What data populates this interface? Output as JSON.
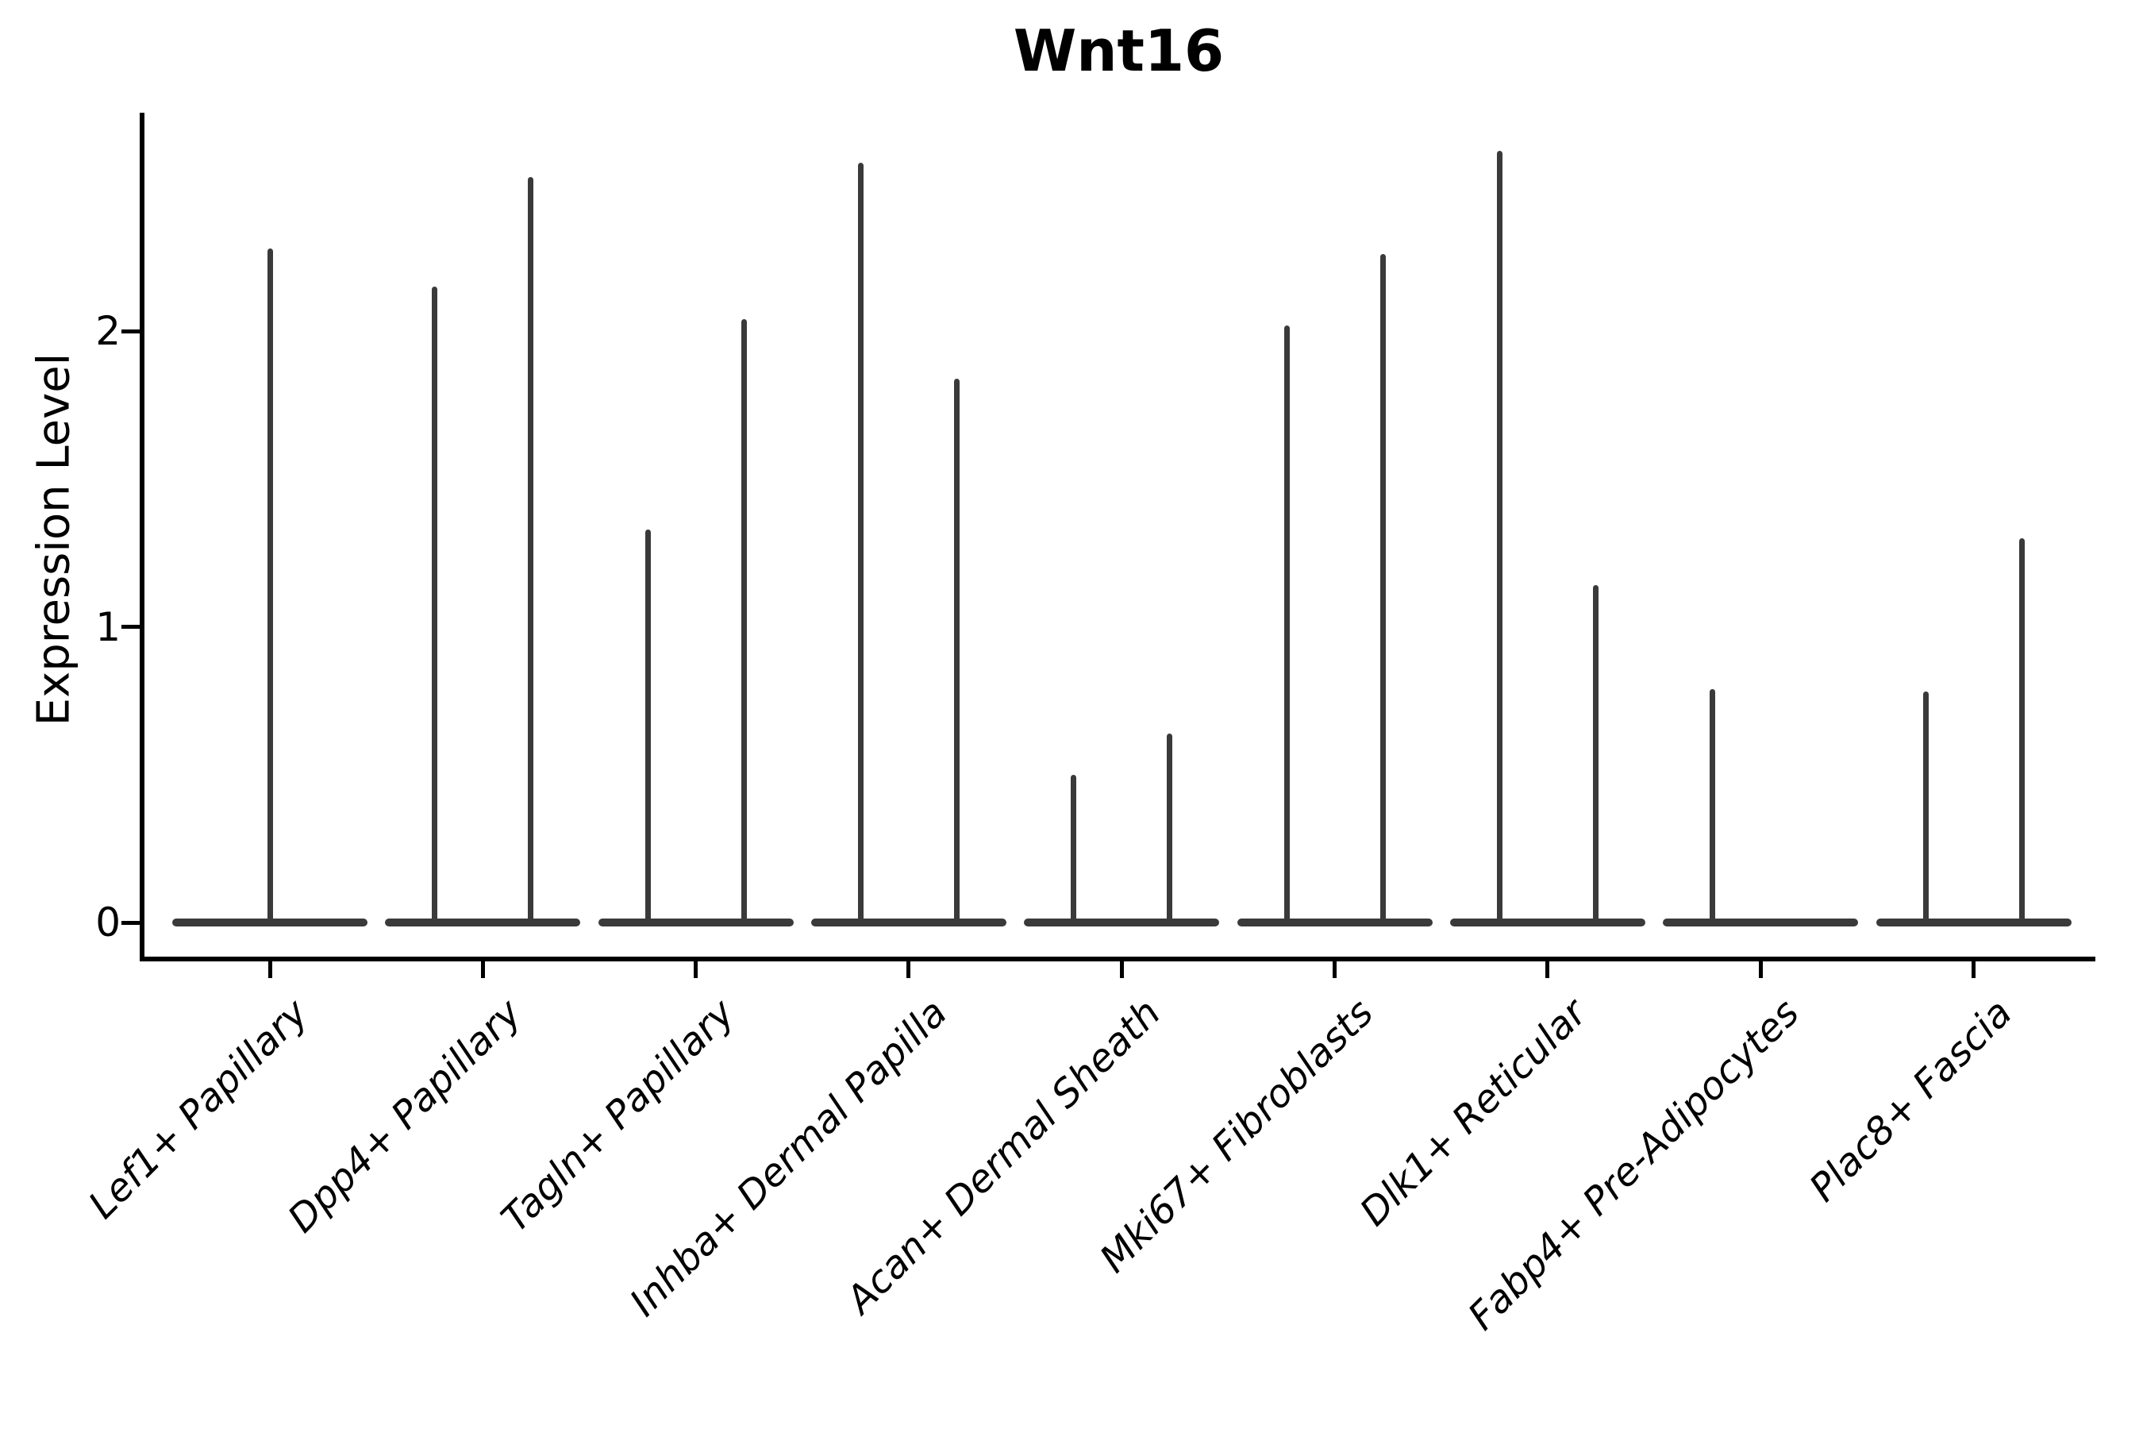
{
  "chart_data": {
    "type": "violin",
    "title": "Wnt16",
    "xlabel": "",
    "ylabel": "Expression Level",
    "yticks": [
      0,
      1,
      2
    ],
    "ylim": [
      -0.12,
      2.74
    ],
    "grid": false,
    "legend": "none",
    "ink_color": "#3a3a3a",
    "axis_color": "#000000",
    "categories": [
      "Lef1+ Papillary",
      "Dpp4+ Papillary",
      "Tagln+ Papillary",
      "Inhba+ Dermal Papilla",
      "Acan+ Dermal Sheath",
      "Mki67+ Fibroblasts",
      "Dlk1+ Reticular",
      "Fabp4+ Pre-Adipocytes",
      "Plac8+ Fascia"
    ],
    "violins": [
      {
        "category": "Lef1+ Papillary",
        "base_halfwidth": 0.46,
        "spikes": [
          {
            "offset": 0.0,
            "max": 2.28
          }
        ]
      },
      {
        "category": "Dpp4+ Papillary",
        "base_halfwidth": 0.46,
        "spikes": [
          {
            "offset": -0.225,
            "max": 2.15
          },
          {
            "offset": 0.225,
            "max": 2.52
          }
        ]
      },
      {
        "category": "Tagln+ Papillary",
        "base_halfwidth": 0.46,
        "spikes": [
          {
            "offset": -0.225,
            "max": 1.33
          },
          {
            "offset": 0.225,
            "max": 2.04
          }
        ]
      },
      {
        "category": "Inhba+ Dermal Papilla",
        "base_halfwidth": 0.46,
        "spikes": [
          {
            "offset": -0.225,
            "max": 2.57
          },
          {
            "offset": 0.225,
            "max": 1.84
          }
        ]
      },
      {
        "category": "Acan+ Dermal Sheath",
        "base_halfwidth": 0.46,
        "spikes": [
          {
            "offset": -0.225,
            "max": 0.5
          },
          {
            "offset": 0.225,
            "max": 0.64
          }
        ]
      },
      {
        "category": "Mki67+ Fibroblasts",
        "base_halfwidth": 0.46,
        "spikes": [
          {
            "offset": -0.225,
            "max": 2.02
          },
          {
            "offset": 0.225,
            "max": 2.26
          }
        ]
      },
      {
        "category": "Dlk1+ Reticular",
        "base_halfwidth": 0.46,
        "spikes": [
          {
            "offset": -0.225,
            "max": 2.61
          },
          {
            "offset": 0.225,
            "max": 1.14
          }
        ]
      },
      {
        "category": "Fabp4+ Pre-Adipocytes",
        "base_halfwidth": 0.46,
        "spikes": [
          {
            "offset": -0.225,
            "max": 0.79
          }
        ]
      },
      {
        "category": "Plac8+ Fascia",
        "base_halfwidth": 0.46,
        "spikes": [
          {
            "offset": -0.225,
            "max": 0.78
          },
          {
            "offset": 0.225,
            "max": 1.3
          }
        ]
      }
    ]
  }
}
